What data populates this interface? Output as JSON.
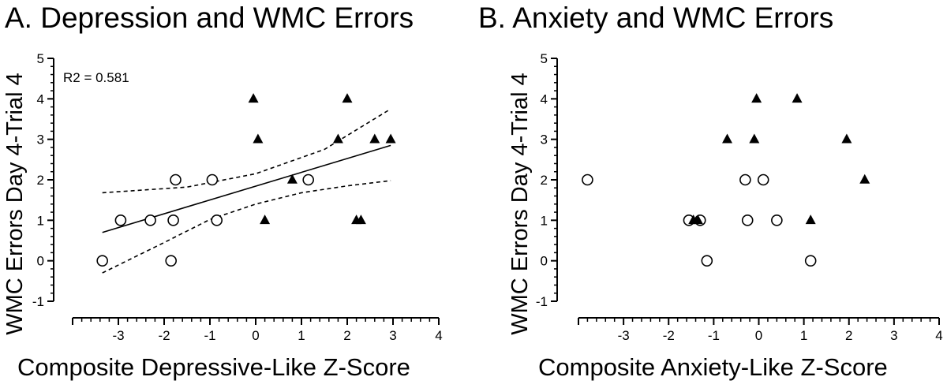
{
  "chart_data": [
    {
      "type": "scatter",
      "title": "A. Depression and WMC Errors",
      "xlabel": "Composite Depressive-Like Z-Score",
      "ylabel": "WMC Errors Day 4-Trial 4",
      "xlim": [
        -4,
        4
      ],
      "ylim": [
        -1,
        5
      ],
      "xticks": [
        "-3",
        "-2",
        "-1",
        "0",
        "1",
        "2",
        "3",
        "4"
      ],
      "yticks": [
        "-1",
        "0",
        "1",
        "2",
        "3",
        "4",
        "5"
      ],
      "annotation": "R2 = 0.581",
      "series": [
        {
          "marker": "open-circle",
          "x": [
            -3.35,
            -2.95,
            -2.3,
            -1.85,
            -1.8,
            -1.75,
            -0.95,
            -0.85,
            1.15
          ],
          "y": [
            0,
            1,
            1,
            0,
            1,
            2,
            2,
            1,
            2
          ]
        },
        {
          "marker": "filled-triangle",
          "x": [
            -0.05,
            0.05,
            0.2,
            0.8,
            1.8,
            2.0,
            2.2,
            2.3,
            2.6,
            2.95
          ],
          "y": [
            4,
            3,
            1,
            2,
            3,
            4,
            1,
            1,
            3,
            3
          ]
        }
      ],
      "regression": {
        "x": [
          -3.35,
          2.95
        ],
        "y": [
          0.7,
          2.85
        ]
      },
      "confidence_band": {
        "upper": {
          "x": [
            -3.35,
            -1.5,
            0,
            1.5,
            2.95
          ],
          "y": [
            1.68,
            1.82,
            2.15,
            2.75,
            3.75
          ]
        },
        "lower": {
          "x": [
            -3.35,
            -2,
            -1,
            0,
            1,
            2,
            2.95
          ],
          "y": [
            -0.3,
            0.45,
            1.02,
            1.4,
            1.68,
            1.85,
            1.98
          ]
        }
      }
    },
    {
      "type": "scatter",
      "title": "B. Anxiety and WMC Errors",
      "xlabel": "Composite Anxiety-Like Z-Score",
      "ylabel": "WMC Errors Day 4-Trial 4",
      "xlim": [
        -4,
        4
      ],
      "ylim": [
        -1,
        5
      ],
      "xticks": [
        "-3",
        "-2",
        "-1",
        "0",
        "1",
        "2",
        "3",
        "4"
      ],
      "yticks": [
        "-1",
        "0",
        "1",
        "2",
        "3",
        "4",
        "5"
      ],
      "series": [
        {
          "marker": "open-circle",
          "x": [
            -3.8,
            -1.55,
            -1.3,
            -1.15,
            -0.3,
            -0.25,
            0.1,
            0.4,
            1.15
          ],
          "y": [
            2,
            1,
            1,
            0,
            2,
            1,
            2,
            1,
            0
          ]
        },
        {
          "marker": "filled-triangle",
          "x": [
            -1.45,
            -1.35,
            -0.7,
            -0.1,
            -0.05,
            0.85,
            1.15,
            1.95,
            2.35
          ],
          "y": [
            1,
            1,
            3,
            3,
            4,
            4,
            1,
            3,
            2
          ]
        }
      ]
    }
  ]
}
